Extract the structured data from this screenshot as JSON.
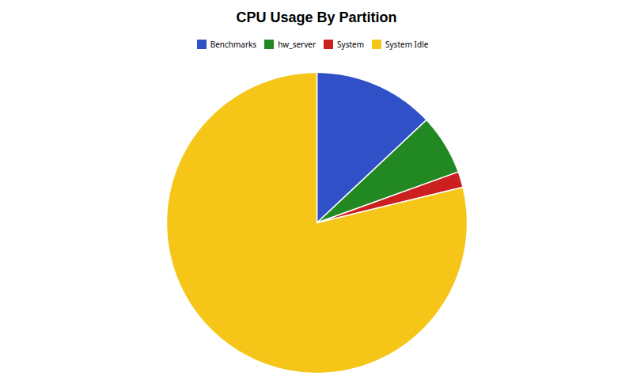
{
  "chart_data": {
    "type": "pie",
    "title": "CPU Usage By Partition",
    "categories": [
      "Benchmarks",
      "hw_server",
      "System",
      "System Idle"
    ],
    "values": [
      13.0,
      6.5,
      1.7,
      78.8
    ],
    "colors": [
      "#3050c8",
      "#228822",
      "#cc2020",
      "#f5c518"
    ],
    "legend": "top"
  }
}
